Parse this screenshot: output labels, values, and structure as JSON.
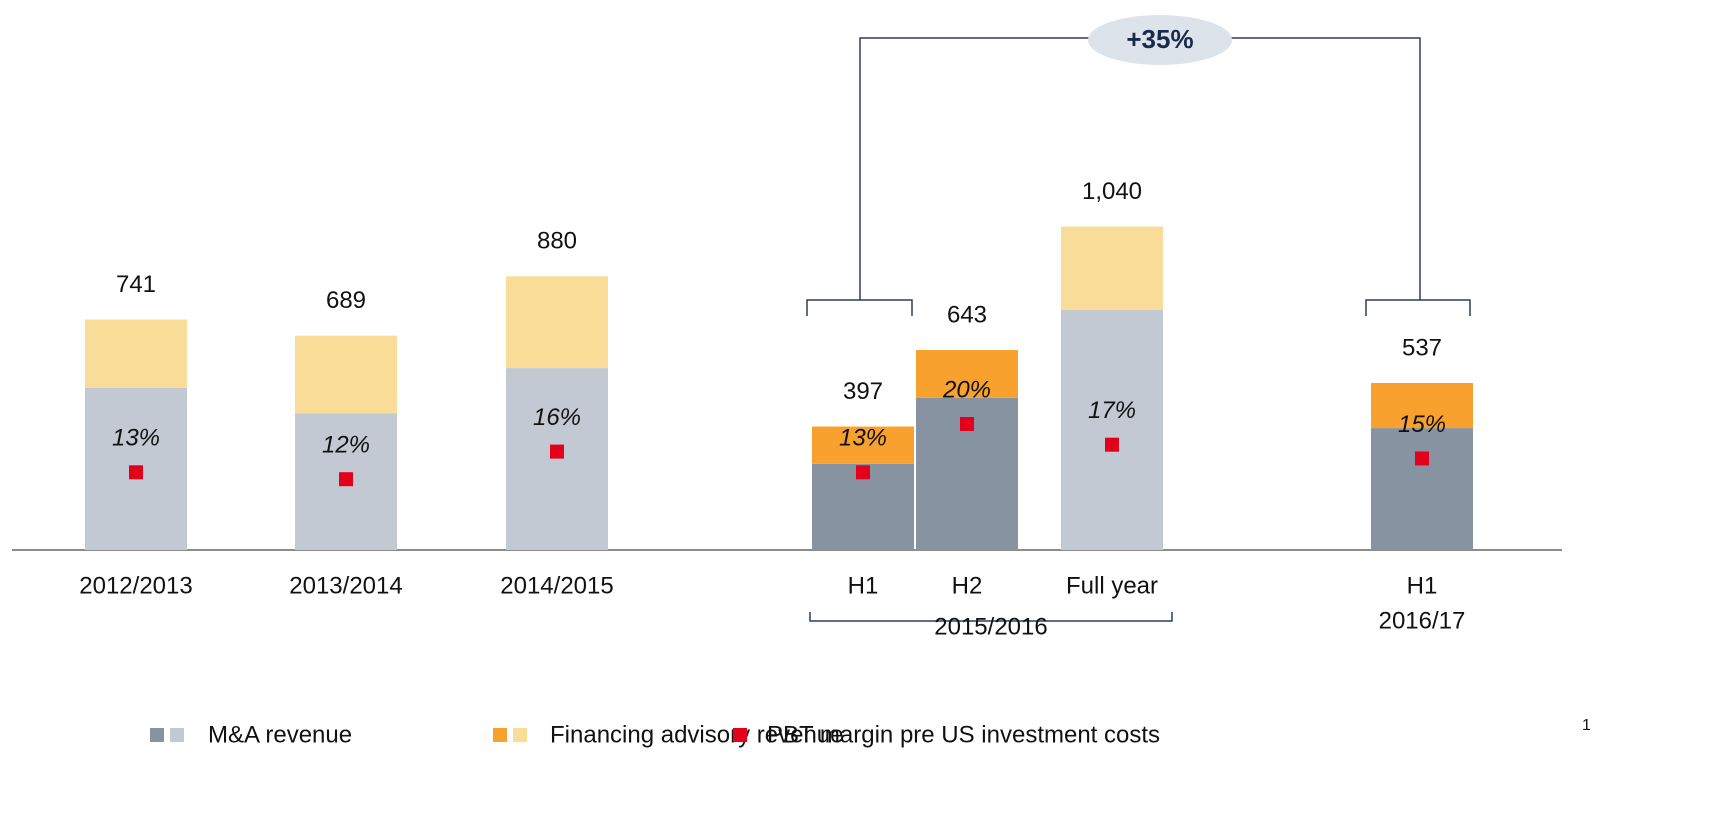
{
  "chart_data": {
    "type": "stacked_bar",
    "categories": [
      "2012/2013",
      "2013/2014",
      "2014/2015",
      "H1",
      "H2",
      "Full year",
      "H1"
    ],
    "totals": [
      741,
      689,
      880,
      397,
      643,
      1040,
      537
    ],
    "total_labels": [
      "741",
      "689",
      "880",
      "397",
      "643",
      "1,040",
      "537"
    ],
    "series": [
      {
        "name": "M&A revenue",
        "colors": [
          "#c3c9d3",
          "#c3c9d3",
          "#c3c9d3",
          "#8893a2",
          "#8893a2",
          "#c3c9d3",
          "#8893a2"
        ],
        "values": [
          521,
          440,
          585,
          277,
          489,
          772,
          392
        ]
      },
      {
        "name": "Financing advisory revenue",
        "colors": [
          "#f8dc98",
          "#f8dc98",
          "#f8dc98",
          "#f9a12e",
          "#f9a12e",
          "#f8dc98",
          "#f9a12e"
        ],
        "values": [
          220,
          249,
          295,
          120,
          154,
          268,
          145
        ]
      }
    ],
    "margin": {
      "name": "PBT margin pre US investment costs",
      "footnote_ref": "1",
      "color": "#e3001b",
      "values": [
        13,
        12,
        16,
        13,
        20,
        17,
        15
      ],
      "value_labels": [
        "13%",
        "12%",
        "16%",
        "13%",
        "20%",
        "17%",
        "15%"
      ]
    },
    "annotations": {
      "group": "2015/2016",
      "period": "2016/17",
      "growth": "+35%"
    }
  }
}
